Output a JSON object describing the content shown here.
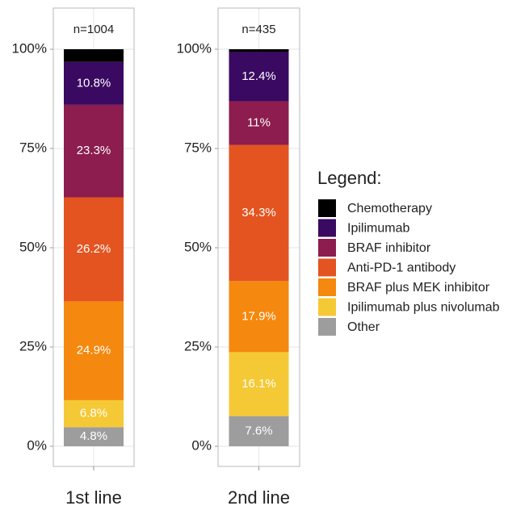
{
  "chart_data": {
    "type": "bar",
    "stacked": true,
    "categories": [
      "1st line",
      "2nd line"
    ],
    "annotations": [
      "n=1004",
      "n=435"
    ],
    "legend_title": "Legend:",
    "ylim": [
      0,
      100
    ],
    "yticks": [
      {
        "value": 0,
        "label": "0%"
      },
      {
        "value": 25,
        "label": "25%"
      },
      {
        "value": 50,
        "label": "50%"
      },
      {
        "value": 75,
        "label": "75%"
      },
      {
        "value": 100,
        "label": "100%"
      }
    ],
    "grid": true,
    "series": [
      {
        "name": "Chemotherapy",
        "color": "#000000",
        "values": [
          3.2,
          0.7
        ],
        "value_labels": [
          null,
          null
        ]
      },
      {
        "name": "Ipilimumab",
        "color": "#3a0962",
        "values": [
          10.8,
          12.4
        ],
        "value_labels": [
          "10.8%",
          "12.4%"
        ]
      },
      {
        "name": "BRAF inhibitor",
        "color": "#8c1d4e",
        "values": [
          23.3,
          11
        ],
        "value_labels": [
          "23.3%",
          "11%"
        ]
      },
      {
        "name": "Anti-PD-1 antibody",
        "color": "#e35420",
        "values": [
          26.2,
          34.3
        ],
        "value_labels": [
          "26.2%",
          "34.3%"
        ]
      },
      {
        "name": "BRAF plus MEK inhibitor",
        "color": "#f5880e",
        "values": [
          24.9,
          17.9
        ],
        "value_labels": [
          "24.9%",
          "17.9%"
        ]
      },
      {
        "name": "Ipilimumab plus nivolumab",
        "color": "#f5c935",
        "values": [
          6.8,
          16.1
        ],
        "value_labels": [
          "6.8%",
          "16.1%"
        ]
      },
      {
        "name": "Other",
        "color": "#9d9d9d",
        "values": [
          4.8,
          7.6
        ],
        "value_labels": [
          "4.8%",
          "7.6%"
        ]
      }
    ]
  }
}
